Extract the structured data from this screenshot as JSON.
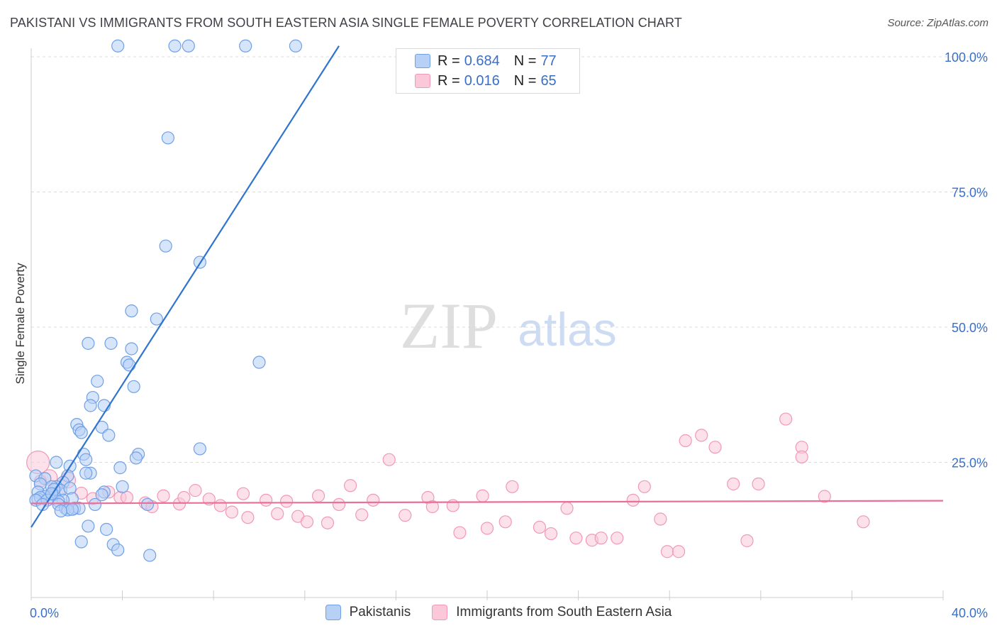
{
  "title": "PAKISTANI VS IMMIGRANTS FROM SOUTH EASTERN ASIA SINGLE FEMALE POVERTY CORRELATION CHART",
  "source": "Source: ZipAtlas.com",
  "watermark": {
    "zip": "ZIP",
    "atlas": "atlas"
  },
  "legend_top": [
    {
      "r_label": "R =",
      "r_value": "0.684",
      "n_label": "N =",
      "n_value": "77"
    },
    {
      "r_label": "R =",
      "r_value": "0.016",
      "n_label": "N =",
      "n_value": "65"
    }
  ],
  "chart_data": {
    "type": "scatter",
    "title": "PAKISTANI VS IMMIGRANTS FROM SOUTH EASTERN ASIA SINGLE FEMALE POVERTY CORRELATION CHART",
    "xlabel": "",
    "ylabel": "Single Female Poverty",
    "xlim": [
      0,
      40
    ],
    "ylim": [
      0,
      102
    ],
    "x_tick_labels": [
      {
        "value": 0,
        "label": "0.0%"
      },
      {
        "value": 40,
        "label": "40.0%"
      }
    ],
    "y_tick_labels": [
      {
        "value": 25,
        "label": "25.0%"
      },
      {
        "value": 50,
        "label": "50.0%"
      },
      {
        "value": 75,
        "label": "75.0%"
      },
      {
        "value": 100,
        "label": "100.0%"
      }
    ],
    "x_minor_ticks": [
      0,
      4,
      8,
      12,
      16,
      20,
      24,
      28,
      32,
      36,
      40
    ],
    "grid": true,
    "series": [
      {
        "name": "Pakistanis",
        "color": "#6fa0e6",
        "fill": "#b7d0f5",
        "line_color": "#2f74cf",
        "trend": [
          [
            0,
            13
          ],
          [
            13.5,
            102
          ]
        ],
        "points": [
          [
            3.8,
            102
          ],
          [
            6.3,
            102
          ],
          [
            6.9,
            102
          ],
          [
            9.4,
            102
          ],
          [
            11.6,
            102
          ],
          [
            6.0,
            85
          ],
          [
            5.9,
            65
          ],
          [
            7.4,
            62
          ],
          [
            5.5,
            51.5
          ],
          [
            4.4,
            53
          ],
          [
            3.5,
            47
          ],
          [
            2.5,
            47
          ],
          [
            4.4,
            46
          ],
          [
            4.2,
            43.5
          ],
          [
            4.3,
            43
          ],
          [
            10.0,
            43.5
          ],
          [
            2.9,
            40
          ],
          [
            4.5,
            39
          ],
          [
            2.7,
            37
          ],
          [
            3.2,
            35.5
          ],
          [
            2.6,
            35.5
          ],
          [
            2.0,
            32
          ],
          [
            3.1,
            31.5
          ],
          [
            2.1,
            31
          ],
          [
            2.2,
            30.5
          ],
          [
            3.4,
            30
          ],
          [
            7.4,
            27.5
          ],
          [
            4.7,
            26.5
          ],
          [
            2.3,
            26.5
          ],
          [
            4.6,
            25.8
          ],
          [
            2.4,
            25.5
          ],
          [
            1.1,
            25
          ],
          [
            1.7,
            24.3
          ],
          [
            3.9,
            24
          ],
          [
            2.6,
            23
          ],
          [
            2.4,
            23
          ],
          [
            1.6,
            22.5
          ],
          [
            0.2,
            22.5
          ],
          [
            0.6,
            22
          ],
          [
            1.4,
            21.3
          ],
          [
            1.1,
            20.5
          ],
          [
            4.0,
            20.5
          ],
          [
            0.4,
            21
          ],
          [
            0.9,
            20.5
          ],
          [
            1.3,
            19.8
          ],
          [
            1.7,
            20.2
          ],
          [
            0.3,
            19.5
          ],
          [
            3.2,
            19.5
          ],
          [
            1.0,
            19.0
          ],
          [
            0.8,
            18.5
          ],
          [
            0.6,
            18.7
          ],
          [
            1.8,
            18.3
          ],
          [
            0.3,
            18.2
          ],
          [
            0.4,
            18.5
          ],
          [
            0.2,
            18.0
          ],
          [
            1.4,
            18.0
          ],
          [
            1.2,
            17.8
          ],
          [
            0.7,
            18.0
          ],
          [
            0.5,
            17.2
          ],
          [
            1.2,
            17.2
          ],
          [
            2.8,
            17.2
          ],
          [
            5.1,
            17.2
          ],
          [
            1.5,
            16.5
          ],
          [
            1.9,
            16.5
          ],
          [
            2.1,
            16.5
          ],
          [
            1.6,
            16.2
          ],
          [
            1.8,
            16.3
          ],
          [
            1.3,
            16.0
          ],
          [
            2.5,
            13.2
          ],
          [
            3.3,
            12.6
          ],
          [
            2.2,
            10.3
          ],
          [
            3.6,
            9.8
          ],
          [
            3.8,
            8.8
          ],
          [
            5.2,
            7.8
          ],
          [
            1.0,
            20.0
          ],
          [
            0.9,
            19.2
          ],
          [
            3.1,
            19.0
          ]
        ]
      },
      {
        "name": "Immigrants from South Eastern Asia",
        "color": "#f199b6",
        "fill": "#fac8d8",
        "line_color": "#e8709c",
        "trend": [
          [
            0,
            17.4
          ],
          [
            40,
            17.9
          ]
        ],
        "points": [
          [
            0.3,
            25
          ],
          [
            0.8,
            22.2
          ],
          [
            1.6,
            21.7
          ],
          [
            0.4,
            21.5
          ],
          [
            1.2,
            19.5
          ],
          [
            2.2,
            19.3
          ],
          [
            2.7,
            18.3
          ],
          [
            3.4,
            19.5
          ],
          [
            3.9,
            18.5
          ],
          [
            4.2,
            18.5
          ],
          [
            5.0,
            17.5
          ],
          [
            5.3,
            16.8
          ],
          [
            5.8,
            18.8
          ],
          [
            6.5,
            17.3
          ],
          [
            6.7,
            18.5
          ],
          [
            7.2,
            19.8
          ],
          [
            7.8,
            18.2
          ],
          [
            8.3,
            17.0
          ],
          [
            8.8,
            15.8
          ],
          [
            9.3,
            19.2
          ],
          [
            9.5,
            14.8
          ],
          [
            10.3,
            18.0
          ],
          [
            10.8,
            15.5
          ],
          [
            11.2,
            17.8
          ],
          [
            11.7,
            15.0
          ],
          [
            12.1,
            14.0
          ],
          [
            12.6,
            18.8
          ],
          [
            13.0,
            13.8
          ],
          [
            13.5,
            17.2
          ],
          [
            14.0,
            20.7
          ],
          [
            14.5,
            15.3
          ],
          [
            15.0,
            18.0
          ],
          [
            15.7,
            25.5
          ],
          [
            16.4,
            15.2
          ],
          [
            17.4,
            18.5
          ],
          [
            17.6,
            16.8
          ],
          [
            18.5,
            17.0
          ],
          [
            18.8,
            12.0
          ],
          [
            19.8,
            18.8
          ],
          [
            20.0,
            12.8
          ],
          [
            20.8,
            14.0
          ],
          [
            21.1,
            20.5
          ],
          [
            22.3,
            13.0
          ],
          [
            22.8,
            11.8
          ],
          [
            23.5,
            16.5
          ],
          [
            23.9,
            11.0
          ],
          [
            24.6,
            10.6
          ],
          [
            25.0,
            11.0
          ],
          [
            25.7,
            11.0
          ],
          [
            26.4,
            18.0
          ],
          [
            26.9,
            20.5
          ],
          [
            27.6,
            14.5
          ],
          [
            27.9,
            8.5
          ],
          [
            28.4,
            8.5
          ],
          [
            28.7,
            29.0
          ],
          [
            29.4,
            30.0
          ],
          [
            30.0,
            27.8
          ],
          [
            30.8,
            21.0
          ],
          [
            31.4,
            10.5
          ],
          [
            31.9,
            21.0
          ],
          [
            33.1,
            33.0
          ],
          [
            33.8,
            27.8
          ],
          [
            33.8,
            26.0
          ],
          [
            34.8,
            18.7
          ],
          [
            36.5,
            14.0
          ]
        ]
      }
    ]
  }
}
